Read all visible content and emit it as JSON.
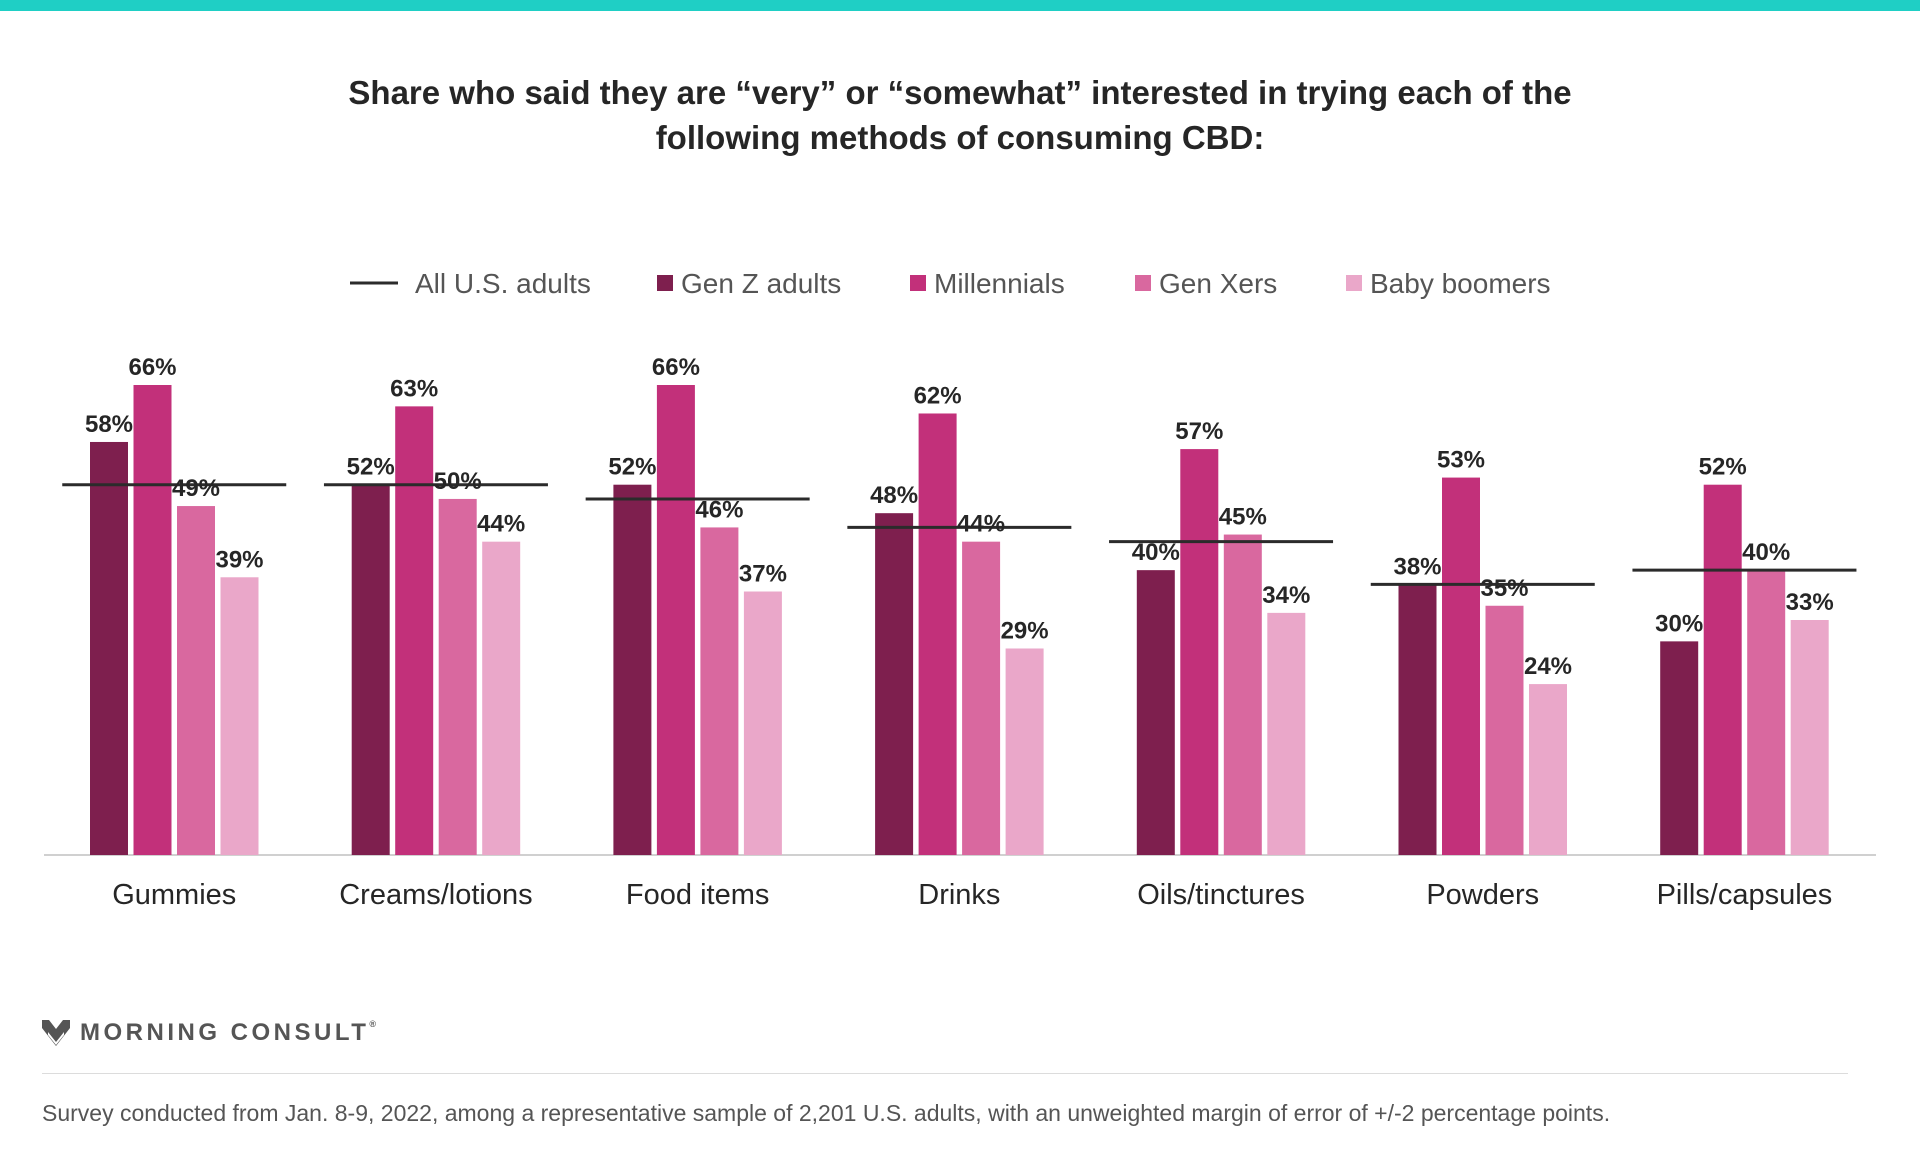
{
  "title": {
    "line1": "Share who said they are “very” or “somewhat” interested in trying each of the",
    "line2": "following methods of consuming CBD:"
  },
  "chart_data": {
    "type": "bar",
    "title": "Share who said they are “very” or “somewhat” interested in trying each of the following methods of consuming CBD:",
    "categories": [
      "Gummies",
      "Creams/lotions",
      "Food items",
      "Drinks",
      "Oils/tinctures",
      "Powders",
      "Pills/capsules"
    ],
    "series": [
      {
        "name": "Gen Z adults",
        "color": "#7e1f4e",
        "values": [
          58,
          52,
          52,
          48,
          40,
          38,
          30
        ]
      },
      {
        "name": "Millennials",
        "color": "#c2307a",
        "values": [
          66,
          63,
          66,
          62,
          57,
          53,
          52
        ]
      },
      {
        "name": "Gen Xers",
        "color": "#d9689f",
        "values": [
          49,
          50,
          46,
          44,
          45,
          35,
          40
        ]
      },
      {
        "name": "Baby boomers",
        "color": "#eaa7c9",
        "values": [
          39,
          44,
          37,
          29,
          34,
          24,
          33
        ]
      }
    ],
    "reference_line": {
      "name": "All U.S. adults",
      "color": "#2b2b2b",
      "values": [
        52,
        52,
        50,
        46,
        44,
        38,
        40
      ]
    },
    "ylim": [
      0,
      75
    ],
    "value_suffix": "%",
    "legend_position": "top-center",
    "grid": false,
    "xlabel": "",
    "ylabel": ""
  },
  "brand": {
    "name": "MORNING CONSULT",
    "mark": "®"
  },
  "footnote": "Survey conducted from Jan. 8-9, 2022, among a representative sample of 2,201 U.S. adults, with an unweighted margin of error of +/-2 percentage points.",
  "colors": {
    "accent": "#1fcfc5",
    "text": "#262626",
    "baseline": "#d0d0d0"
  }
}
